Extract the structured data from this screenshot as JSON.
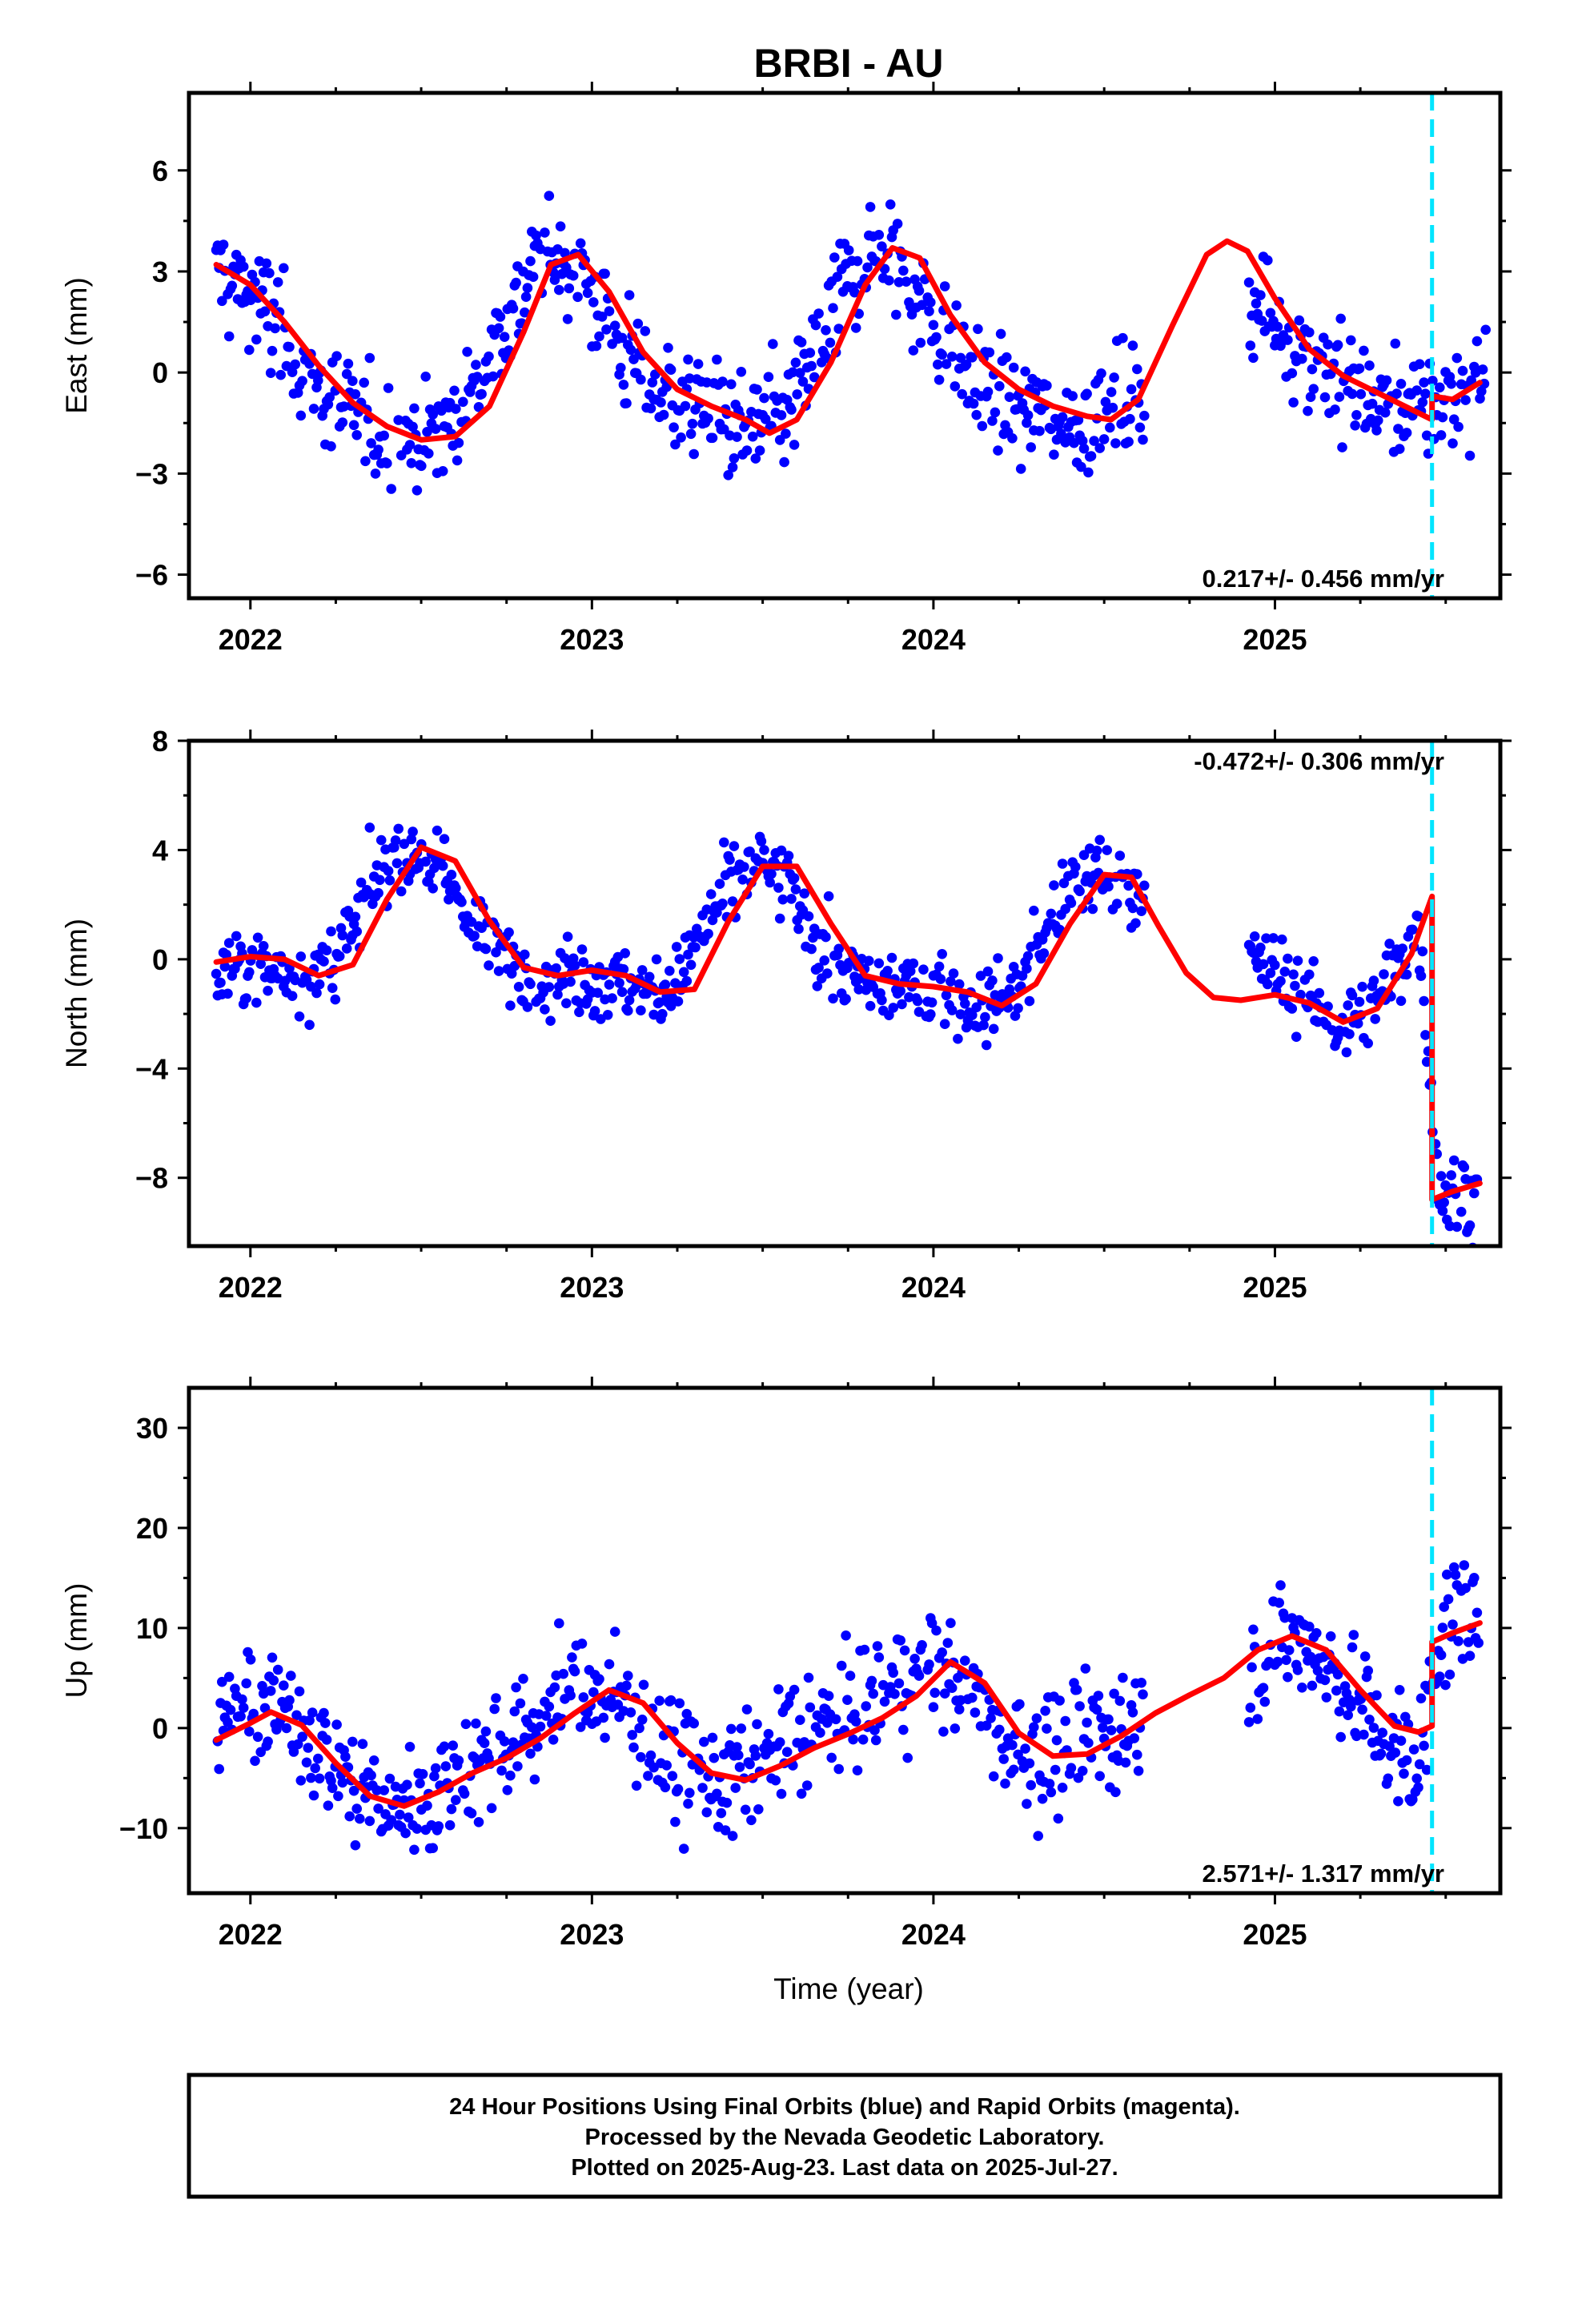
{
  "title": "BRBI - AU",
  "xlabel": "Time (year)",
  "footer": {
    "line1": "24 Hour Positions Using Final Orbits (blue) and Rapid Orbits (magenta).",
    "line2": "Processed by the Nevada Geodetic Laboratory.",
    "line3": "Plotted on 2025-Aug-23. Last data on 2025-Jul-27."
  },
  "colors": {
    "points": "#0000ff",
    "model": "#ff0000",
    "event": "#00e5ff",
    "frame": "#000000"
  },
  "chart_data": [
    {
      "type": "scatter",
      "panel": "east",
      "ylabel": "East (mm)",
      "xlim": [
        2021.82,
        2025.66
      ],
      "ylim": [
        -6.7,
        8.3
      ],
      "yticks": [
        -6,
        -3,
        0,
        3,
        6
      ],
      "xticks": [
        2022,
        2023,
        2024,
        2025
      ],
      "xtick_labels": [
        "2022",
        "2023",
        "2024",
        "2025"
      ],
      "rate_label": "0.217+/- 0.456 mm/yr",
      "rate_position": "bottom-right",
      "event_line_x": 2025.46,
      "series": [
        {
          "role": "daily positions",
          "style": "points",
          "x": [
            2021.9,
            2021.98,
            2022.06,
            2022.14,
            2022.22,
            2022.3,
            2022.38,
            2022.46,
            2022.54,
            2022.62,
            2022.7,
            2022.78,
            2022.86,
            2022.94,
            2023.02,
            2023.1,
            2023.18,
            2023.26,
            2023.34,
            2023.42,
            2023.5,
            2023.58,
            2023.66,
            2023.74,
            2023.82,
            2023.9,
            2023.98,
            2024.06,
            2024.14,
            2024.22,
            2024.3,
            2024.38,
            2024.46,
            2024.54,
            2024.6,
            2024.94,
            2025.02,
            2025.1,
            2025.18,
            2025.26,
            2025.34,
            2025.42,
            2025.5,
            2025.56,
            2025.62
          ],
          "y": [
            3.1,
            2.5,
            1.7,
            0.4,
            -0.8,
            -1.4,
            -1.8,
            -2.0,
            -1.9,
            -1.2,
            0.5,
            2.2,
            3.4,
            3.3,
            2.0,
            0.5,
            -0.4,
            -0.8,
            -1.1,
            -1.5,
            -1.8,
            -1.1,
            0.7,
            2.6,
            3.6,
            3.2,
            1.8,
            0.5,
            -0.4,
            -0.9,
            -1.2,
            -1.4,
            -1.5,
            -1.1,
            -0.8,
            2.0,
            1.4,
            0.6,
            -0.2,
            -0.6,
            -0.9,
            -1.1,
            -0.8,
            -0.6,
            -0.3
          ],
          "spread": 1.3
        },
        {
          "role": "model fit",
          "style": "line",
          "x": [
            2021.9,
            2022.0,
            2022.1,
            2022.2,
            2022.3,
            2022.4,
            2022.5,
            2022.6,
            2022.7,
            2022.8,
            2022.88,
            2022.96,
            2023.05,
            2023.15,
            2023.25,
            2023.35,
            2023.45,
            2023.52,
            2023.6,
            2023.7,
            2023.8,
            2023.88,
            2023.96,
            2024.05,
            2024.15,
            2024.25,
            2024.35,
            2024.45,
            2024.52,
            2024.6,
            2024.7,
            2024.8,
            2024.86,
            2024.92,
            2025.0,
            2025.1,
            2025.2,
            2025.3,
            2025.4,
            2025.46,
            2025.46,
            2025.52,
            2025.6
          ],
          "y": [
            3.2,
            2.6,
            1.5,
            0.2,
            -0.9,
            -1.6,
            -2.0,
            -1.9,
            -1.0,
            1.2,
            3.2,
            3.5,
            2.4,
            0.6,
            -0.5,
            -1.0,
            -1.4,
            -1.8,
            -1.4,
            0.3,
            2.6,
            3.7,
            3.4,
            1.7,
            0.3,
            -0.5,
            -1.0,
            -1.3,
            -1.4,
            -0.8,
            1.4,
            3.5,
            3.9,
            3.6,
            2.2,
            0.7,
            -0.1,
            -0.6,
            -1.1,
            -1.4,
            -0.7,
            -0.8,
            -0.3
          ]
        }
      ]
    },
    {
      "type": "scatter",
      "panel": "north",
      "ylabel": "North (mm)",
      "xlim": [
        2021.82,
        2025.66
      ],
      "ylim": [
        -10.5,
        8.0
      ],
      "yticks": [
        -8,
        -4,
        0,
        4,
        8
      ],
      "xticks": [
        2022,
        2023,
        2024,
        2025
      ],
      "xtick_labels": [
        "2022",
        "2023",
        "2024",
        "2025"
      ],
      "rate_label": "-0.472+/- 0.306 mm/yr",
      "rate_position": "top-right",
      "event_line_x": 2025.46,
      "series": [
        {
          "role": "daily positions",
          "style": "points",
          "x": [
            2021.9,
            2021.98,
            2022.06,
            2022.14,
            2022.22,
            2022.3,
            2022.38,
            2022.46,
            2022.54,
            2022.62,
            2022.7,
            2022.78,
            2022.86,
            2022.94,
            2023.02,
            2023.1,
            2023.18,
            2023.26,
            2023.34,
            2023.42,
            2023.5,
            2023.58,
            2023.66,
            2023.74,
            2023.82,
            2023.9,
            2023.98,
            2024.06,
            2024.14,
            2024.22,
            2024.3,
            2024.38,
            2024.46,
            2024.54,
            2024.6,
            2024.94,
            2025.02,
            2025.1,
            2025.18,
            2025.26,
            2025.34,
            2025.42,
            2025.48,
            2025.54,
            2025.6
          ],
          "y": [
            -0.5,
            -0.3,
            -0.4,
            -0.6,
            -0.4,
            1.0,
            3.2,
            4.0,
            3.4,
            2.0,
            0.6,
            -0.4,
            -0.6,
            -0.5,
            -0.7,
            -1.0,
            -1.2,
            -0.6,
            1.4,
            3.0,
            3.5,
            2.6,
            0.6,
            -0.6,
            -1.0,
            -1.0,
            -1.1,
            -1.3,
            -1.6,
            -1.5,
            0.2,
            2.2,
            3.1,
            3.0,
            2.6,
            -0.1,
            -0.5,
            -1.6,
            -2.4,
            -2.2,
            -0.8,
            1.4,
            -8.4,
            -8.8,
            -8.6
          ],
          "spread": 1.1
        },
        {
          "role": "model fit",
          "style": "line",
          "x": [
            2021.9,
            2022.0,
            2022.1,
            2022.2,
            2022.3,
            2022.4,
            2022.5,
            2022.6,
            2022.7,
            2022.8,
            2022.9,
            2023.0,
            2023.1,
            2023.2,
            2023.3,
            2023.4,
            2023.5,
            2023.6,
            2023.7,
            2023.8,
            2023.9,
            2024.0,
            2024.1,
            2024.2,
            2024.3,
            2024.4,
            2024.5,
            2024.58,
            2024.66,
            2024.74,
            2024.82,
            2024.9,
            2025.0,
            2025.1,
            2025.2,
            2025.3,
            2025.4,
            2025.46,
            2025.46,
            2025.52,
            2025.6
          ],
          "y": [
            -0.1,
            0.1,
            0.0,
            -0.6,
            -0.2,
            2.2,
            4.1,
            3.6,
            1.4,
            -0.3,
            -0.6,
            -0.4,
            -0.6,
            -1.2,
            -1.1,
            1.4,
            3.4,
            3.4,
            1.3,
            -0.6,
            -0.9,
            -1.0,
            -1.2,
            -1.7,
            -0.9,
            1.3,
            3.1,
            3.0,
            1.2,
            -0.5,
            -1.4,
            -1.5,
            -1.3,
            -1.6,
            -2.3,
            -1.8,
            0.2,
            2.3,
            -8.8,
            -8.5,
            -8.2
          ]
        }
      ]
    },
    {
      "type": "scatter",
      "panel": "up",
      "ylabel": "Up (mm)",
      "xlim": [
        2021.82,
        2025.66
      ],
      "ylim": [
        -16.5,
        34.0
      ],
      "yticks": [
        -10,
        0,
        10,
        20,
        30
      ],
      "xticks": [
        2022,
        2023,
        2024,
        2025
      ],
      "xtick_labels": [
        "2022",
        "2023",
        "2024",
        "2025"
      ],
      "rate_label": "2.571+/- 1.317 mm/yr",
      "rate_position": "bottom-right",
      "event_line_x": 2025.46,
      "series": [
        {
          "role": "daily positions",
          "style": "points",
          "x": [
            2021.9,
            2021.98,
            2022.06,
            2022.14,
            2022.22,
            2022.3,
            2022.38,
            2022.46,
            2022.54,
            2022.62,
            2022.7,
            2022.78,
            2022.86,
            2022.94,
            2023.02,
            2023.1,
            2023.18,
            2023.26,
            2023.34,
            2023.42,
            2023.5,
            2023.58,
            2023.66,
            2023.74,
            2023.82,
            2023.9,
            2023.98,
            2024.06,
            2024.14,
            2024.22,
            2024.3,
            2024.38,
            2024.46,
            2024.54,
            2024.6,
            2024.94,
            2025.02,
            2025.1,
            2025.18,
            2025.26,
            2025.34,
            2025.42,
            2025.48,
            2025.54,
            2025.6
          ],
          "y": [
            0.5,
            1.5,
            2.0,
            0.8,
            -2.0,
            -5.5,
            -7.5,
            -7.8,
            -6.2,
            -4.5,
            -2.5,
            -1.0,
            1.5,
            3.5,
            3.8,
            2.0,
            -1.5,
            -3.8,
            -5.2,
            -4.8,
            -3.0,
            -1.5,
            -0.3,
            1.0,
            2.8,
            4.5,
            6.5,
            5.0,
            1.5,
            -1.5,
            -2.8,
            -2.5,
            -1.2,
            0.2,
            1.0,
            6.5,
            8.5,
            8.2,
            5.5,
            2.0,
            -1.5,
            -4.0,
            9.5,
            11.0,
            11.5
          ],
          "spread": 4.8
        },
        {
          "role": "model fit",
          "style": "line",
          "x": [
            2021.9,
            2022.0,
            2022.06,
            2022.15,
            2022.25,
            2022.35,
            2022.45,
            2022.55,
            2022.65,
            2022.75,
            2022.85,
            2022.95,
            2023.05,
            2023.15,
            2023.25,
            2023.35,
            2023.45,
            2023.55,
            2023.65,
            2023.75,
            2023.85,
            2023.95,
            2024.05,
            2024.15,
            2024.25,
            2024.35,
            2024.45,
            2024.55,
            2024.65,
            2024.75,
            2024.85,
            2024.95,
            2025.05,
            2025.15,
            2025.25,
            2025.35,
            2025.42,
            2025.46,
            2025.46,
            2025.52,
            2025.6
          ],
          "y": [
            -1.2,
            0.5,
            1.6,
            0.3,
            -3.5,
            -6.8,
            -7.8,
            -6.4,
            -4.5,
            -3.0,
            -1.0,
            1.5,
            3.8,
            2.5,
            -1.5,
            -4.5,
            -5.2,
            -3.8,
            -2.0,
            -0.6,
            1.0,
            3.2,
            6.6,
            4.5,
            -0.5,
            -2.8,
            -2.6,
            -0.8,
            1.5,
            3.3,
            5.0,
            7.8,
            9.2,
            7.8,
            3.8,
            0.2,
            -0.4,
            0.2,
            8.6,
            9.5,
            10.5
          ]
        }
      ]
    }
  ]
}
